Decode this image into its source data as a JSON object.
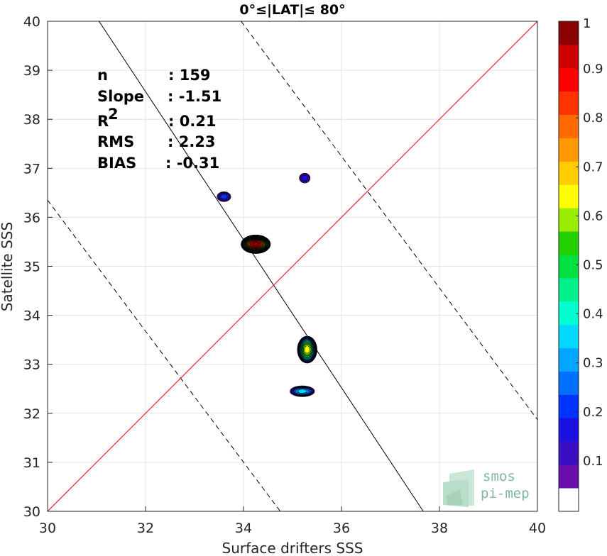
{
  "chart_data": {
    "type": "heatmap",
    "subtype": "density-contour scatter",
    "title": "0°≤|LAT|≤ 80°",
    "xlabel": "Surface drifters SSS",
    "ylabel": "Satellite SSS",
    "xlim": [
      30,
      40
    ],
    "ylim": [
      30,
      40
    ],
    "xticks": [
      "30",
      "32",
      "34",
      "36",
      "38",
      "40"
    ],
    "yticks": [
      "30",
      "31",
      "32",
      "33",
      "34",
      "35",
      "36",
      "37",
      "38",
      "39",
      "40"
    ],
    "grid": true,
    "stats": [
      {
        "label": "n",
        "value": ": 159"
      },
      {
        "label": "Slope",
        "value": ": -1.51"
      },
      {
        "label": "R",
        "sup": "2",
        "value": ": 0.21"
      },
      {
        "label": "RMS",
        "value": ": 2.23"
      },
      {
        "label": "BIAS",
        "value": ": -0.31"
      }
    ],
    "lines": {
      "one_to_one": {
        "color": "#e8262b",
        "points": [
          [
            30,
            30
          ],
          [
            40,
            40
          ]
        ]
      },
      "fit": {
        "color": "#000000",
        "style": "solid",
        "points": [
          [
            31.05,
            40
          ],
          [
            37.67,
            30
          ]
        ]
      },
      "fit_upper": {
        "color": "#000000",
        "style": "dashed",
        "points": [
          [
            33.95,
            40
          ],
          [
            40,
            31.87
          ]
        ]
      },
      "fit_lower": {
        "color": "#000000",
        "style": "dashed",
        "points": [
          [
            30,
            36.35
          ],
          [
            34.75,
            30
          ]
        ]
      }
    },
    "density_clusters": [
      {
        "x": 34.25,
        "y": 35.45,
        "sx": 0.6,
        "sy": 0.38,
        "peak": 1.0
      },
      {
        "x": 35.3,
        "y": 33.3,
        "sx": 0.4,
        "sy": 0.55,
        "peak": 0.65
      },
      {
        "x": 35.2,
        "y": 32.45,
        "sx": 0.5,
        "sy": 0.22,
        "peak": 0.35
      },
      {
        "x": 33.6,
        "y": 36.42,
        "sx": 0.28,
        "sy": 0.2,
        "peak": 0.2
      },
      {
        "x": 35.25,
        "y": 36.8,
        "sx": 0.22,
        "sy": 0.2,
        "peak": 0.15
      }
    ],
    "colorbar": {
      "ticks": [
        "0.1",
        "0.2",
        "0.3",
        "0.4",
        "0.5",
        "0.6",
        "0.7",
        "0.8",
        "0.9",
        "1"
      ],
      "tick_values": [
        0.1,
        0.2,
        0.3,
        0.4,
        0.5,
        0.6,
        0.7,
        0.8,
        0.9,
        1.0
      ],
      "colors": [
        "#ffffff",
        "#6a0dad",
        "#3a0fc4",
        "#1a10e0",
        "#0033ff",
        "#0070ff",
        "#00a6ff",
        "#00d8ff",
        "#00ffd0",
        "#00f08c",
        "#00e040",
        "#22d000",
        "#99ee00",
        "#ffff00",
        "#ffcc00",
        "#ff9900",
        "#ff6a00",
        "#ff3300",
        "#ff0000",
        "#cc0000",
        "#8b0000"
      ]
    }
  },
  "logo": {
    "line1": "smos",
    "line2": "pi-mep"
  }
}
